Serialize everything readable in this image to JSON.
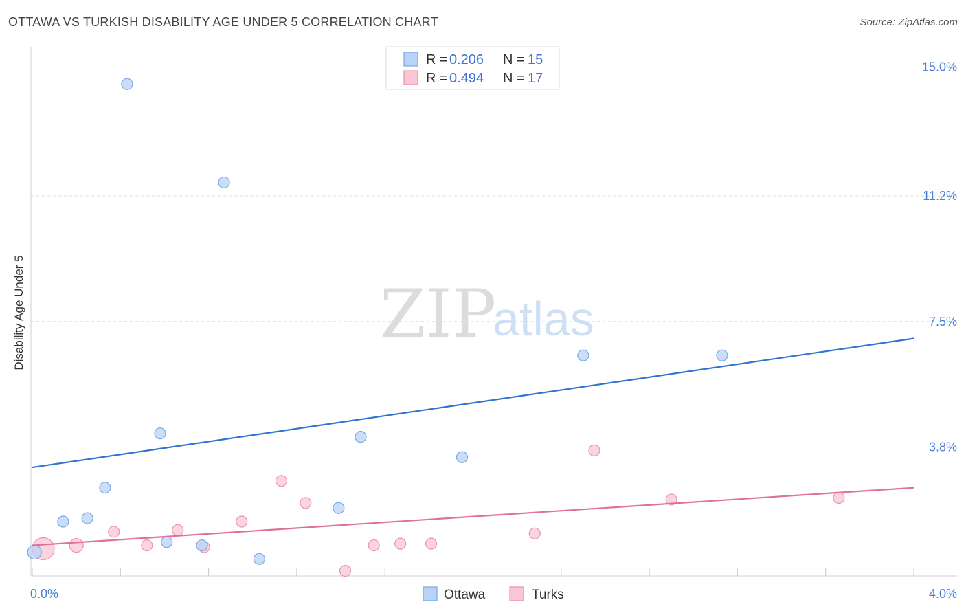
{
  "header": {
    "title": "OTTAWA VS TURKISH DISABILITY AGE UNDER 5 CORRELATION CHART",
    "source": "Source: ZipAtlas.com"
  },
  "watermark": {
    "zip": "ZIP",
    "atlas": "atlas"
  },
  "colors": {
    "ottawa_fill": "#b9d3f5",
    "ottawa_stroke": "#7aa6e6",
    "ottawa_line": "#2f74d0",
    "turks_fill": "#f8c6d4",
    "turks_stroke": "#eb93ad",
    "turks_line": "#e0709a",
    "tick_text": "#4a7fd6"
  },
  "legend": {
    "rows": [
      {
        "r_label": "R = ",
        "r_value": "0.206",
        "n_label": "N = ",
        "n_value": "15"
      },
      {
        "r_label": "R = ",
        "r_value": "0.494",
        "n_label": "N = ",
        "n_value": "17"
      }
    ]
  },
  "chart_data": {
    "type": "scatter",
    "title": "OTTAWA VS TURKISH DISABILITY AGE UNDER 5 CORRELATION CHART",
    "xlabel": "",
    "ylabel": "Disability Age Under 5",
    "xlim": [
      0.0,
      4.0
    ],
    "ylim": [
      0.0,
      15.6
    ],
    "x_tick_labels": [
      "0.0%",
      "4.0%"
    ],
    "y_ticks": [
      3.8,
      7.5,
      11.2,
      15.0
    ],
    "y_tick_labels": [
      "3.8%",
      "7.5%",
      "11.2%",
      "15.0%"
    ],
    "grid": true,
    "series": [
      {
        "name": "Ottawa",
        "r": 0.206,
        "n": 15,
        "trend": {
          "x": [
            0.0,
            4.0
          ],
          "y": [
            3.2,
            7.0
          ]
        },
        "points": [
          {
            "x": 0.01,
            "y": 0.7,
            "size": "medium"
          },
          {
            "x": 0.14,
            "y": 1.6,
            "size": "small"
          },
          {
            "x": 0.25,
            "y": 1.7,
            "size": "small"
          },
          {
            "x": 0.33,
            "y": 2.6,
            "size": "small"
          },
          {
            "x": 0.43,
            "y": 14.5,
            "size": "small"
          },
          {
            "x": 0.58,
            "y": 4.2,
            "size": "small"
          },
          {
            "x": 0.61,
            "y": 1.0,
            "size": "small"
          },
          {
            "x": 0.77,
            "y": 0.9,
            "size": "small"
          },
          {
            "x": 0.87,
            "y": 11.6,
            "size": "small"
          },
          {
            "x": 1.03,
            "y": 0.5,
            "size": "small"
          },
          {
            "x": 1.39,
            "y": 2.0,
            "size": "small"
          },
          {
            "x": 1.49,
            "y": 4.1,
            "size": "small"
          },
          {
            "x": 1.95,
            "y": 3.5,
            "size": "small"
          },
          {
            "x": 2.5,
            "y": 6.5,
            "size": "small"
          },
          {
            "x": 3.13,
            "y": 6.5,
            "size": "small"
          }
        ]
      },
      {
        "name": "Turks",
        "r": 0.494,
        "n": 17,
        "trend": {
          "x": [
            0.0,
            4.0
          ],
          "y": [
            0.9,
            2.6
          ]
        },
        "points": [
          {
            "x": 0.05,
            "y": 0.8,
            "size": "large"
          },
          {
            "x": 0.2,
            "y": 0.9,
            "size": "medium"
          },
          {
            "x": 0.37,
            "y": 1.3,
            "size": "small"
          },
          {
            "x": 0.52,
            "y": 0.9,
            "size": "small"
          },
          {
            "x": 0.66,
            "y": 1.35,
            "size": "small"
          },
          {
            "x": 0.78,
            "y": 0.85,
            "size": "small"
          },
          {
            "x": 0.95,
            "y": 1.6,
            "size": "small"
          },
          {
            "x": 1.13,
            "y": 2.8,
            "size": "small"
          },
          {
            "x": 1.24,
            "y": 2.15,
            "size": "small"
          },
          {
            "x": 1.42,
            "y": 0.15,
            "size": "small"
          },
          {
            "x": 1.55,
            "y": 0.9,
            "size": "small"
          },
          {
            "x": 1.67,
            "y": 0.95,
            "size": "small"
          },
          {
            "x": 1.81,
            "y": 0.95,
            "size": "small"
          },
          {
            "x": 2.28,
            "y": 1.25,
            "size": "small"
          },
          {
            "x": 2.55,
            "y": 3.7,
            "size": "small"
          },
          {
            "x": 2.9,
            "y": 2.25,
            "size": "small"
          },
          {
            "x": 3.66,
            "y": 2.3,
            "size": "small"
          }
        ]
      }
    ],
    "legend_labels": [
      "Ottawa",
      "Turks"
    ]
  }
}
